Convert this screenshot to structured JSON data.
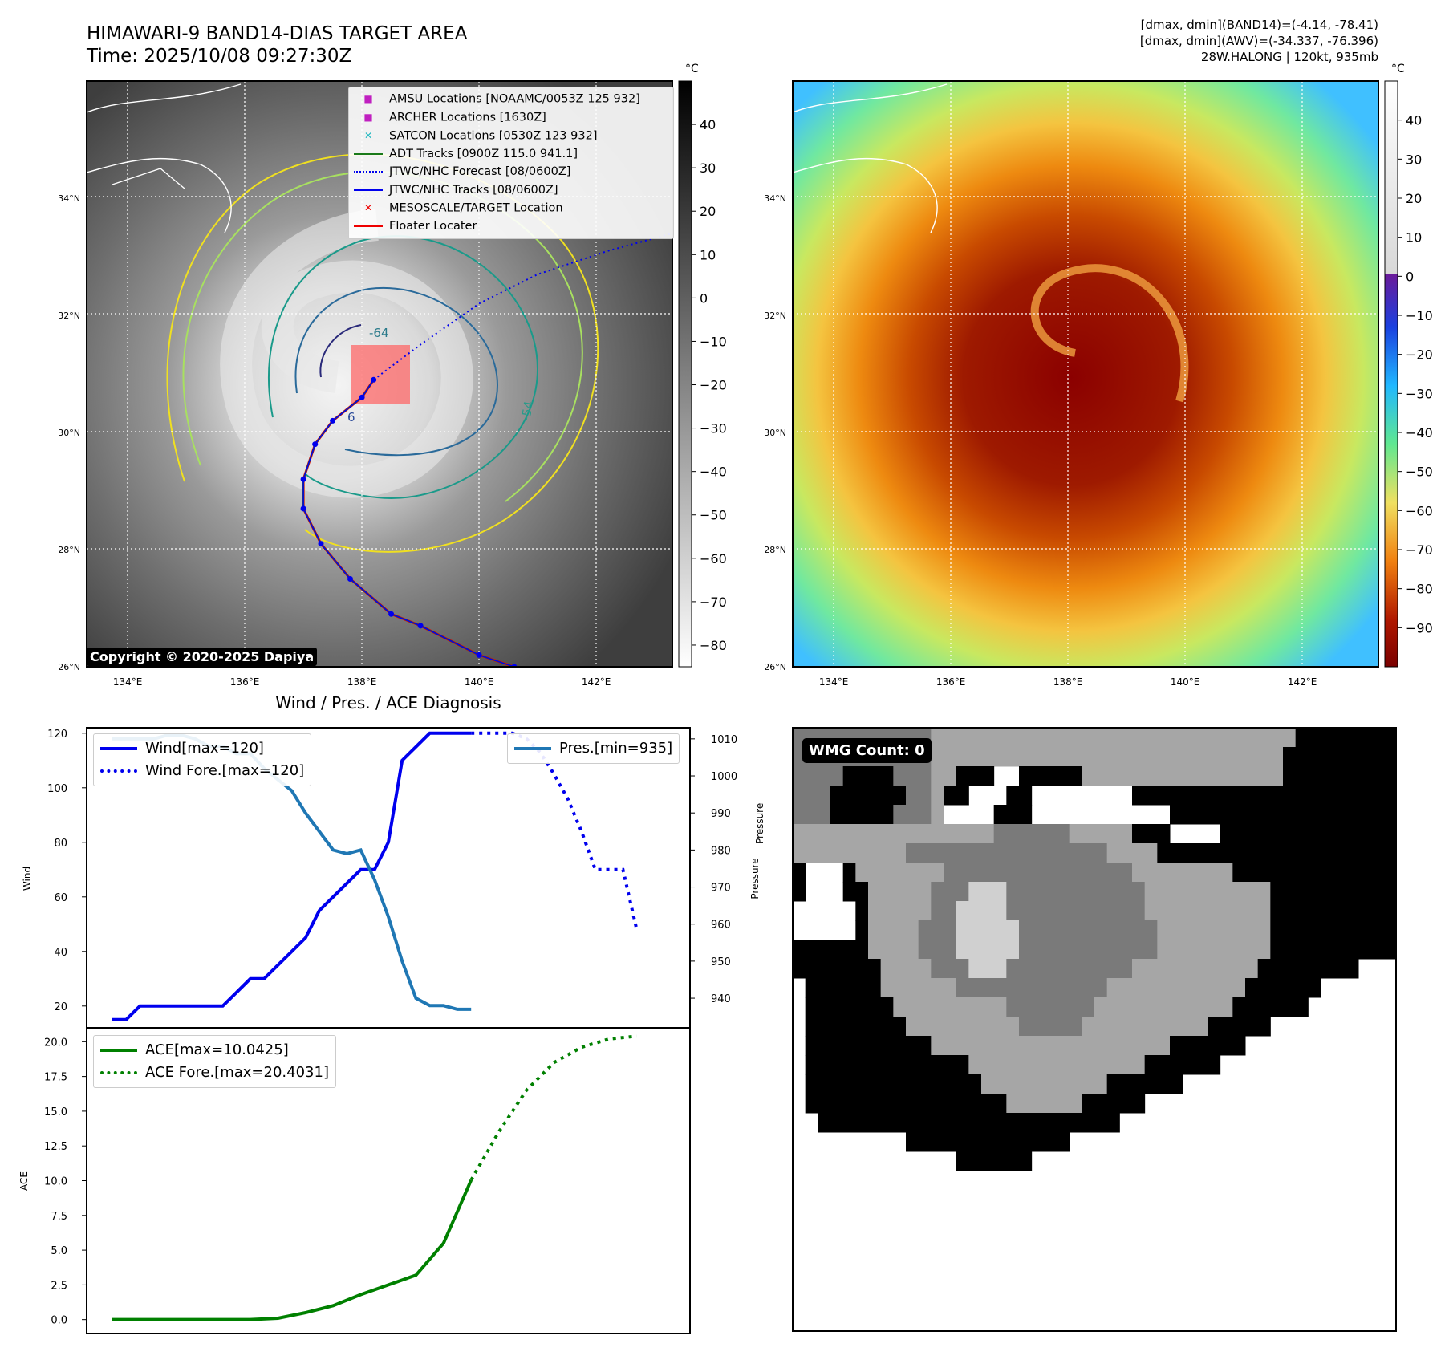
{
  "header": {
    "title_line1": "HIMAWARI-9 BAND14-DIAS TARGET AREA",
    "title_line2": "Time: 2025/10/08 09:27:30Z",
    "info_line1": "[dmax, dmin](BAND14)=(-4.14, -78.41)",
    "info_line2": "[dmax, dmin](AWV)=(-34.337, -76.396)",
    "info_line3": "28W.HALONG | 120kt, 935mb"
  },
  "map": {
    "lon_ticks": [
      "134°E",
      "136°E",
      "138°E",
      "140°E",
      "142°E"
    ],
    "lat_ticks": [
      "34°N",
      "32°N",
      "30°N",
      "28°N",
      "26°N"
    ],
    "lon_values": [
      134,
      136,
      138,
      140,
      142
    ],
    "lat_values": [
      34,
      32,
      30,
      28,
      26
    ],
    "extent": {
      "lon": [
        133.3,
        143.3
      ],
      "lat": [
        26,
        36
      ]
    },
    "contour_labels": [
      "-64",
      "-54",
      "6"
    ],
    "copyright": "Copyright © 2020-2025 Dapiya",
    "legend": [
      {
        "label": "AMSU Locations [NOAAMC/0053Z 125 932]",
        "marker": "square",
        "color": "#c020c0"
      },
      {
        "label": "ARCHER Locations [1630Z]",
        "marker": "square",
        "color": "#c020c0"
      },
      {
        "label": "SATCON Locations [0530Z 123 932]",
        "marker": "x",
        "color": "#20b8c0"
      },
      {
        "label": "ADT Tracks [0900Z 115.0 941.1]",
        "marker": "line",
        "color": "#1a7a1a"
      },
      {
        "label": "JTWC/NHC Forecast [08/0600Z]",
        "marker": "dotted",
        "color": "#0000ee"
      },
      {
        "label": "JTWC/NHC Tracks [08/0600Z]",
        "marker": "line-dot",
        "color": "#0000ee"
      },
      {
        "label": "MESOSCALE/TARGET Location",
        "marker": "x",
        "color": "#ee0000"
      },
      {
        "label": "Floater Locater",
        "marker": "line",
        "color": "#ee0000"
      }
    ],
    "jtwc_track": [
      [
        140.6,
        26.0
      ],
      [
        140.0,
        26.2
      ],
      [
        139.0,
        26.7
      ],
      [
        138.5,
        26.9
      ],
      [
        137.8,
        27.5
      ],
      [
        137.3,
        28.1
      ],
      [
        137.0,
        28.7
      ],
      [
        137.0,
        29.2
      ],
      [
        137.2,
        29.8
      ],
      [
        137.5,
        30.2
      ],
      [
        138.0,
        30.6
      ],
      [
        138.2,
        30.9
      ]
    ],
    "jtwc_forecast": [
      [
        138.2,
        30.9
      ],
      [
        139.0,
        31.5
      ],
      [
        140.0,
        32.2
      ],
      [
        141.0,
        32.7
      ],
      [
        142.2,
        33.1
      ],
      [
        143.3,
        33.4
      ]
    ],
    "target_box": {
      "lon": [
        137.8,
        138.8
      ],
      "lat": [
        30.5,
        31.5
      ]
    },
    "temperature_colorbar": {
      "unit": "°C",
      "ticks": [
        40,
        30,
        20,
        10,
        0,
        -10,
        -20,
        -30,
        -40,
        -50,
        -60,
        -70,
        -80
      ],
      "range": [
        -85,
        50
      ]
    }
  },
  "awv_map": {
    "lon_ticks": [
      "134°E",
      "136°E",
      "138°E",
      "140°E",
      "142°E"
    ],
    "lat_ticks": [
      "34°N",
      "32°N",
      "30°N",
      "28°N",
      "26°N"
    ],
    "colorbar": {
      "unit": "°C",
      "ticks": [
        40,
        30,
        20,
        10,
        0,
        -10,
        -20,
        -30,
        -40,
        -50,
        -60,
        -70,
        -80,
        -90
      ],
      "range": [
        -100,
        50
      ]
    }
  },
  "wmg": {
    "label": "WMG Count: 0"
  },
  "chart_data": [
    {
      "type": "line",
      "title": "Wind / Pres. / ACE Diagnosis",
      "ylabel": "Wind",
      "y2label": "Pressure",
      "ylim": [
        12,
        122
      ],
      "y2lim": [
        932,
        1013
      ],
      "yticks": [
        20,
        40,
        60,
        80,
        100,
        120
      ],
      "y2ticks": [
        940,
        950,
        960,
        970,
        980,
        990,
        1000,
        1010
      ],
      "x": [
        0,
        1,
        2,
        3,
        4,
        5,
        6,
        7,
        8,
        9,
        10,
        11,
        12,
        13,
        14,
        15,
        16,
        17,
        18,
        19,
        20,
        21,
        22,
        23,
        24,
        25,
        26,
        27,
        28,
        29,
        30,
        31,
        32,
        33,
        34,
        35,
        36,
        37,
        38,
        39,
        40
      ],
      "series": [
        {
          "name": "Wind[max=120]",
          "axis": "left",
          "style": "solid",
          "color": "#0000ee",
          "x": [
            0,
            1,
            2,
            3,
            4,
            5,
            6,
            7,
            8,
            9,
            10,
            11,
            12,
            13,
            14,
            15,
            16,
            17,
            18,
            19,
            20,
            21,
            22,
            23,
            24,
            25,
            26
          ],
          "values": [
            15,
            15,
            20,
            20,
            20,
            20,
            20,
            20,
            20,
            25,
            30,
            30,
            35,
            40,
            45,
            55,
            60,
            65,
            70,
            70,
            80,
            110,
            115,
            120,
            120,
            120,
            120
          ]
        },
        {
          "name": "Wind Fore.[max=120]",
          "axis": "left",
          "style": "dotted",
          "color": "#0000ee",
          "x": [
            26,
            27,
            28,
            29,
            30,
            31,
            32,
            33,
            34,
            35,
            36,
            37,
            38
          ],
          "values": [
            120,
            120,
            120,
            120,
            118,
            113,
            105,
            96,
            84,
            70,
            70,
            70,
            48
          ]
        },
        {
          "name": "Pres.[min=935]",
          "axis": "right",
          "style": "solid",
          "color": "#1f77b4",
          "x": [
            0,
            1,
            2,
            3,
            4,
            5,
            6,
            7,
            8,
            9,
            10,
            11,
            12,
            13,
            14,
            15,
            16,
            17,
            18,
            19,
            20,
            21,
            22,
            23,
            24,
            25,
            26
          ],
          "values": [
            1010,
            1010,
            1010,
            1010,
            1011,
            1011,
            1010,
            1008,
            1008,
            1006,
            1006,
            1002,
            999,
            996,
            990,
            985,
            980,
            979,
            980,
            972,
            962,
            950,
            940,
            938,
            938,
            937,
            937
          ]
        }
      ]
    },
    {
      "type": "line",
      "ylabel": "ACE",
      "ylim": [
        -1,
        21
      ],
      "yticks": [
        "0.0",
        "2.5",
        "5.0",
        "7.5",
        "10.0",
        "12.5",
        "15.0",
        "17.5",
        "20.0"
      ],
      "series": [
        {
          "name": "ACE[max=10.0425]",
          "style": "solid",
          "color": "#008000",
          "x": [
            0,
            4,
            8,
            10,
            12,
            14,
            16,
            18,
            20,
            22,
            24,
            26
          ],
          "values": [
            0,
            0,
            0,
            0,
            0.1,
            0.5,
            1.0,
            1.8,
            2.5,
            3.2,
            5.5,
            10.04
          ]
        },
        {
          "name": "ACE Fore.[max=20.4031]",
          "style": "dotted",
          "color": "#008000",
          "x": [
            26,
            28,
            30,
            32,
            34,
            36,
            38
          ],
          "values": [
            10.04,
            13.5,
            16.5,
            18.5,
            19.6,
            20.2,
            20.4
          ]
        }
      ]
    }
  ]
}
